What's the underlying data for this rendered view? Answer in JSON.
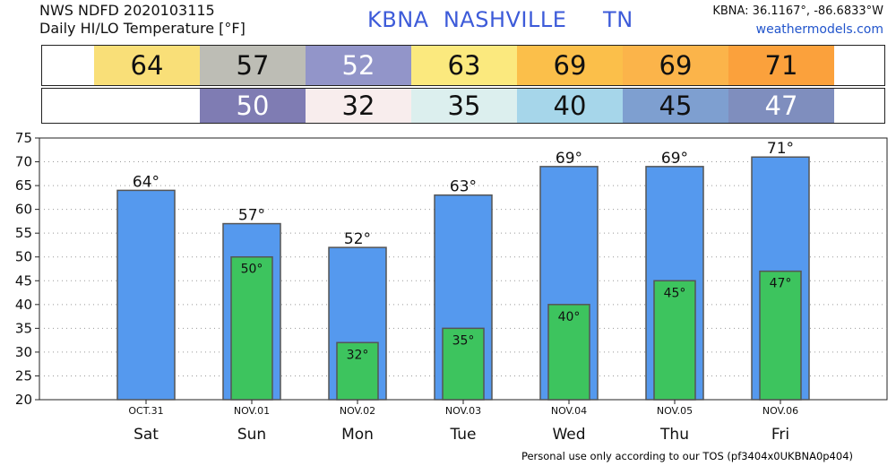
{
  "header": {
    "line1": "NWS NDFD 2020103115",
    "line2": "Daily HI/LO Temperature [°F]",
    "station": "KBNA  NASHVILLE     TN",
    "coords": "KBNA: 36.1167°, -86.6833°W",
    "site": "weathermodels.com"
  },
  "strips": {
    "hi": [
      {
        "text": "64",
        "bg": "#f9df78",
        "fg": "#111111"
      },
      {
        "text": "57",
        "bg": "#bdbdb5",
        "fg": "#111111"
      },
      {
        "text": "52",
        "bg": "#9295c9",
        "fg": "#ffffff"
      },
      {
        "text": "63",
        "bg": "#fbe97e",
        "fg": "#111111"
      },
      {
        "text": "69",
        "bg": "#fbbf4a",
        "fg": "#111111"
      },
      {
        "text": "69",
        "bg": "#fbb44a",
        "fg": "#111111"
      },
      {
        "text": "71",
        "bg": "#fba13c",
        "fg": "#111111"
      }
    ],
    "lo": [
      {
        "text": "",
        "bg": "#ffffff",
        "fg": "#111111"
      },
      {
        "text": "50",
        "bg": "#7f7cb3",
        "fg": "#ffffff"
      },
      {
        "text": "32",
        "bg": "#f8eded",
        "fg": "#111111"
      },
      {
        "text": "35",
        "bg": "#dcefee",
        "fg": "#111111"
      },
      {
        "text": "40",
        "bg": "#a6d6ea",
        "fg": "#111111"
      },
      {
        "text": "45",
        "bg": "#7e9fd0",
        "fg": "#111111"
      },
      {
        "text": "47",
        "bg": "#7f8ebe",
        "fg": "#ffffff"
      }
    ]
  },
  "chart_data": {
    "type": "bar",
    "title": "Daily HI/LO Temperature [°F]",
    "categories": [
      "Sat",
      "Sun",
      "Mon",
      "Tue",
      "Wed",
      "Thu",
      "Fri"
    ],
    "dates": [
      "OCT.31",
      "NOV.01",
      "NOV.02",
      "NOV.03",
      "NOV.04",
      "NOV.05",
      "NOV.06"
    ],
    "series": [
      {
        "values": [
          64,
          57,
          52,
          63,
          69,
          69,
          71
        ],
        "color": "#5599ee",
        "labels": [
          "64°",
          "57°",
          "52°",
          "63°",
          "69°",
          "69°",
          "71°"
        ]
      },
      {
        "values": [
          null,
          50,
          32,
          35,
          40,
          45,
          47
        ],
        "color": "#3dc45e",
        "labels": [
          "",
          "50°",
          "32°",
          "35°",
          "40°",
          "45°",
          "47°"
        ]
      }
    ],
    "ylim": [
      20,
      75
    ],
    "yticks": [
      20,
      25,
      30,
      35,
      40,
      45,
      50,
      55,
      60,
      65,
      70,
      75
    ],
    "grid": true,
    "xlabel": "",
    "ylabel": ""
  },
  "footer": "Personal use only according to our TOS (pf3404x0UKBNA0p404)"
}
